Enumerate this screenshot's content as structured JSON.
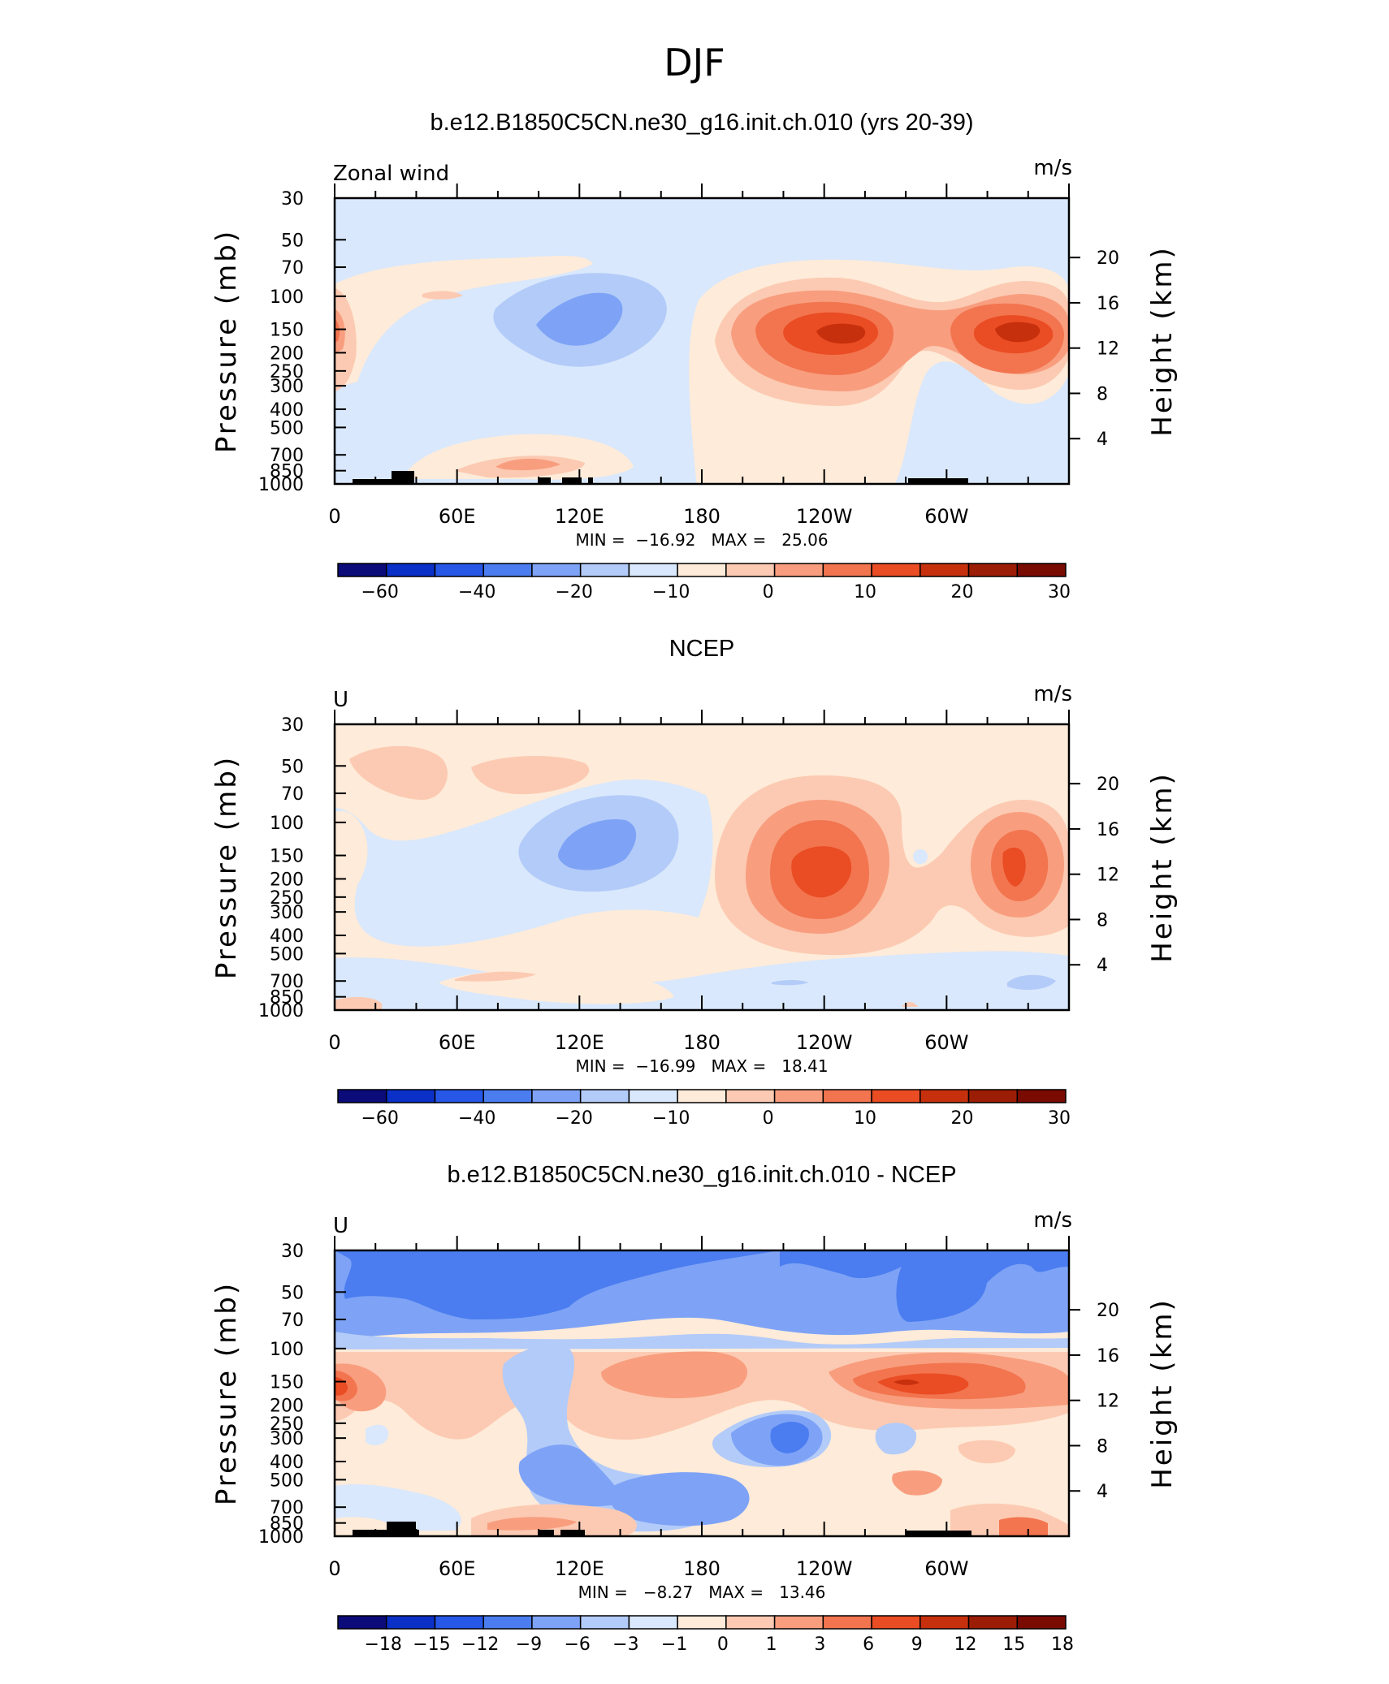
{
  "main_title": "DJF",
  "colors": {
    "diverging_scale": [
      "#0b0b7a",
      "#0a30c8",
      "#2657e6",
      "#4b7df0",
      "#7ea3f6",
      "#b3cbf8",
      "#d9e8fc",
      "#feebd9",
      "#fccab2",
      "#f89e7f",
      "#f2754f",
      "#ea4c23",
      "#c7300d",
      "#9c1d06",
      "#7a0b03"
    ],
    "land": "#000000"
  },
  "panels": [
    {
      "title": "b.e12.B1850C5CN.ne30_g16.init.ch.010 (yrs 20-39)",
      "var_label": "Zonal wind",
      "units": "m/s",
      "stats": "MIN =  −16.92   MAX =   25.06",
      "colorbar_labels": [
        "−60",
        "−40",
        "−20",
        "−10",
        "0",
        "10",
        "20",
        "30"
      ]
    },
    {
      "title": "NCEP",
      "var_label": "U",
      "units": "m/s",
      "stats": "MIN =  −16.99   MAX =   18.41",
      "colorbar_labels": [
        "−60",
        "−40",
        "−20",
        "−10",
        "0",
        "10",
        "20",
        "30"
      ]
    },
    {
      "title": "b.e12.B1850C5CN.ne30_g16.init.ch.010 - NCEP",
      "var_label": "U",
      "units": "m/s",
      "stats": "MIN =   −8.27   MAX =   13.46",
      "colorbar_labels": [
        "−18",
        "−15",
        "−12",
        "−9",
        "−6",
        "−3",
        "−1",
        "0",
        "1",
        "3",
        "6",
        "9",
        "12",
        "15",
        "18"
      ]
    }
  ],
  "axes": {
    "left_label": "Pressure (mb)",
    "right_label": "Height (km)",
    "pressure_ticks": [
      "30",
      "50",
      "70",
      "100",
      "150",
      "200",
      "250",
      "300",
      "400",
      "500",
      "700",
      "850",
      "1000"
    ],
    "height_ticks": [
      "20",
      "16",
      "12",
      "8",
      "4"
    ],
    "lon_ticks": [
      "0",
      "60E",
      "120E",
      "180",
      "120W",
      "60W"
    ]
  },
  "chart_data": [
    {
      "type": "heatmap",
      "title": "b.e12.B1850C5CN.ne30_g16.init.ch.010 (yrs 20-39)",
      "variable": "Zonal wind",
      "units": "m/s",
      "x_axis": "longitude",
      "xlim": [
        0,
        360
      ],
      "y_axis": "Pressure (mb)",
      "y_scale": "log",
      "ylim": [
        1000,
        30
      ],
      "min": -16.92,
      "max": 25.06,
      "levels": [
        -70,
        -60,
        -50,
        -40,
        -30,
        -20,
        -15,
        -10,
        -5,
        0,
        5,
        10,
        15,
        20,
        25,
        30,
        35
      ],
      "features": [
        {
          "lon": 125,
          "p": 130,
          "u": -14
        },
        {
          "lon": 245,
          "p": 150,
          "u": 25
        },
        {
          "lon": 330,
          "p": 150,
          "u": 23
        },
        {
          "lon": 0,
          "p": 160,
          "u": 9
        },
        {
          "lon": 90,
          "p": 650,
          "u": 4
        },
        {
          "lon": 225,
          "p": 850,
          "u": -6
        }
      ]
    },
    {
      "type": "heatmap",
      "title": "NCEP",
      "variable": "U",
      "units": "m/s",
      "x_axis": "longitude",
      "xlim": [
        0,
        360
      ],
      "y_axis": "Pressure (mb)",
      "y_scale": "log",
      "ylim": [
        1000,
        30
      ],
      "min": -16.99,
      "max": 18.41,
      "levels": [
        -70,
        -60,
        -50,
        -40,
        -30,
        -20,
        -15,
        -10,
        -5,
        0,
        5,
        10,
        15,
        20,
        25,
        30,
        35
      ],
      "features": [
        {
          "lon": 125,
          "p": 150,
          "u": -13
        },
        {
          "lon": 240,
          "p": 180,
          "u": 18
        },
        {
          "lon": 335,
          "p": 170,
          "u": 15
        },
        {
          "lon": 45,
          "p": 55,
          "u": 4
        },
        {
          "lon": 110,
          "p": 60,
          "u": 4
        },
        {
          "lon": 340,
          "p": 700,
          "u": -6
        }
      ]
    },
    {
      "type": "heatmap",
      "title": "b.e12.B1850C5CN.ne30_g16.init.ch.010 - NCEP",
      "variable": "U",
      "units": "m/s",
      "x_axis": "longitude",
      "xlim": [
        0,
        360
      ],
      "y_axis": "Pressure (mb)",
      "y_scale": "log",
      "ylim": [
        1000,
        30
      ],
      "min": -8.27,
      "max": 13.46,
      "levels": [
        -18,
        -15,
        -12,
        -9,
        -6,
        -3,
        -1,
        0,
        1,
        3,
        6,
        9,
        12,
        15,
        18
      ],
      "features": [
        {
          "lon": 180,
          "p": 45,
          "u": -6
        },
        {
          "lon": 15,
          "p": 140,
          "u": 8
        },
        {
          "lon": 300,
          "p": 145,
          "u": 12
        },
        {
          "lon": 225,
          "p": 260,
          "u": -6
        },
        {
          "lon": 155,
          "p": 550,
          "u": -5
        },
        {
          "lon": 90,
          "p": 750,
          "u": 5
        }
      ]
    }
  ]
}
